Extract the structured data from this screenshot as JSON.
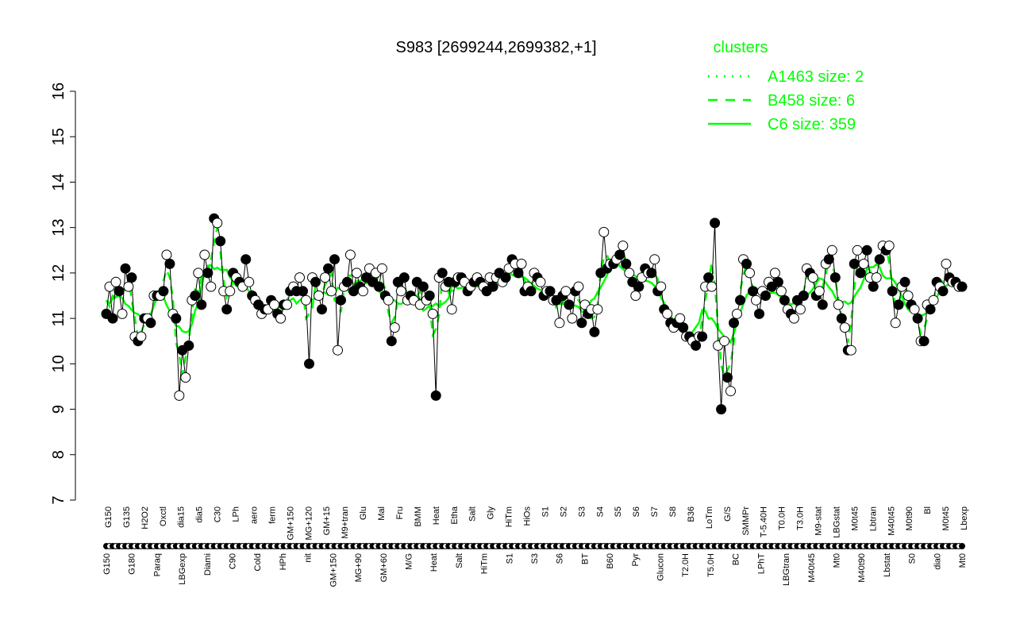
{
  "chart_data": {
    "type": "line",
    "title": "S983 [2699244,2699382,+1]",
    "xlabel": "",
    "ylabel": "",
    "ylim": [
      7,
      16
    ],
    "yticks": [
      7,
      8,
      9,
      10,
      11,
      12,
      13,
      14,
      15,
      16
    ],
    "grid": false,
    "legend_position": "top-right",
    "legend": {
      "title": "clusters",
      "entries": [
        {
          "label": "A1463 size: 2",
          "style": "dotted"
        },
        {
          "label": "B458 size: 6",
          "style": "dashed"
        },
        {
          "label": "C6 size: 359",
          "style": "solid"
        }
      ]
    },
    "x_tick_labels_top": [
      "G150",
      "G135",
      "H2O2",
      "Oxctl",
      "dia15",
      "dia5",
      "C30",
      "LPh",
      "aero",
      "ferm",
      "GM+150",
      "MG+120",
      "GM+15",
      "M9+tran",
      "Glu",
      "Mal",
      "Fru",
      "BMM",
      "Heat",
      "Etha",
      "Salt",
      "Gly",
      "HiTm",
      "HiOs",
      "S1",
      "S2",
      "S3",
      "S4",
      "S5",
      "S6",
      "S7",
      "S8",
      "B36",
      "LoTm",
      "G/S",
      "SMMPr",
      "T-5.40H",
      "T0.0H",
      "T3.0H",
      "M9-stat",
      "LBGstat",
      "M0t45",
      "Lbtran",
      "M40t45",
      "M0t90",
      "Bl",
      "M0t45",
      "Lbexp"
    ],
    "x_tick_labels_bottom": [
      "G150",
      "G180",
      "Paraq",
      "LBGexp",
      "Diami",
      "C90",
      "Cold",
      "HPh",
      "nit",
      "GM+150",
      "MG+90",
      "GM+60",
      "M/G",
      "Heat",
      "Salt",
      "HiTm",
      "S1",
      "S3",
      "S6",
      "BT",
      "B60",
      "Pyr",
      "Glucon",
      "T2.0H",
      "T5.0H",
      "BC",
      "LPhT",
      "LBGtran",
      "M40t45",
      "Mt0",
      "M40t90",
      "Lbstat",
      "S0",
      "dia0",
      "Mt0"
    ],
    "y_values": [
      11.1,
      11.7,
      11.0,
      11.8,
      11.6,
      11.1,
      12.1,
      11.7,
      11.9,
      10.6,
      10.5,
      10.6,
      11.0,
      11.0,
      10.9,
      11.5,
      11.5,
      11.5,
      11.6,
      12.4,
      12.2,
      11.1,
      11.0,
      9.3,
      10.3,
      9.7,
      10.4,
      11.4,
      11.5,
      12.0,
      11.3,
      12.4,
      12.0,
      11.7,
      13.2,
      13.1,
      12.7,
      11.6,
      11.2,
      11.6,
      12.0,
      11.9,
      11.8,
      11.7,
      12.3,
      11.8,
      11.5,
      11.4,
      11.3,
      11.1,
      11.2,
      11.2,
      11.4,
      11.3,
      11.1,
      11.0,
      11.3,
      11.3,
      11.6,
      11.7,
      11.6,
      11.9,
      11.6,
      11.4,
      10.0,
      11.9,
      11.8,
      11.5,
      11.2,
      11.9,
      12.1,
      11.6,
      12.3,
      10.3,
      11.4,
      11.7,
      11.8,
      12.4,
      11.6,
      12.0,
      11.7,
      11.6,
      11.9,
      12.1,
      11.8,
      12.0,
      11.7,
      12.1,
      11.5,
      11.4,
      10.5,
      10.8,
      11.8,
      11.6,
      11.9,
      11.4,
      11.5,
      11.4,
      11.8,
      11.3,
      11.7,
      11.4,
      11.5,
      11.1,
      9.3,
      11.9,
      12.0,
      11.7,
      11.8,
      11.2,
      11.8,
      11.9,
      11.9,
      11.8,
      11.6,
      11.7,
      11.8,
      11.9,
      11.8,
      11.7,
      11.6,
      11.9,
      11.7,
      11.9,
      12.0,
      11.8,
      11.9,
      12.1,
      12.3,
      12.2,
      12.0,
      12.2,
      11.6,
      11.7,
      11.6,
      12.0,
      11.9,
      11.8,
      11.5,
      11.6,
      11.6,
      11.4,
      11.4,
      10.9,
      11.5,
      11.6,
      11.3,
      11.0,
      11.6,
      11.7,
      10.9,
      11.3,
      11.1,
      11.2,
      10.7,
      11.2,
      12.0,
      12.9,
      12.1,
      12.2,
      12.2,
      12.3,
      12.4,
      12.6,
      12.2,
      12.0,
      11.8,
      11.5,
      11.7,
      11.9,
      12.1,
      12.0,
      12.0,
      12.3,
      11.6,
      11.7,
      11.2,
      11.1,
      10.9,
      10.8,
      10.9,
      11.0,
      10.8,
      10.6,
      10.6,
      10.5,
      10.4,
      10.6,
      10.6,
      11.7,
      11.9,
      11.7,
      13.1,
      10.4,
      9.0,
      10.5,
      9.7,
      9.4,
      10.9,
      11.1,
      11.4,
      12.3,
      12.2,
      12.0,
      11.6,
      11.4,
      11.1,
      11.6,
      11.5,
      11.8,
      11.7,
      12.0,
      11.8,
      11.6,
      11.4,
      11.2,
      11.1,
      11.0,
      11.4,
      11.2,
      11.5,
      12.1,
      12.0,
      11.9,
      11.5,
      11.6,
      11.3,
      12.2,
      12.3,
      12.5,
      11.9,
      11.3,
      11.0,
      10.8,
      10.3,
      10.3,
      12.2,
      12.5,
      12.0,
      12.2,
      12.5,
      11.9,
      11.7,
      11.9,
      12.3,
      12.6,
      12.5,
      12.6,
      11.6,
      10.9,
      11.3,
      11.7,
      11.8,
      11.5,
      11.3,
      11.2,
      11.0,
      10.5,
      10.5,
      11.3,
      11.2,
      11.4,
      11.8,
      11.7,
      11.6,
      12.2,
      11.9,
      11.8,
      11.8,
      11.7,
      11.7
    ]
  }
}
